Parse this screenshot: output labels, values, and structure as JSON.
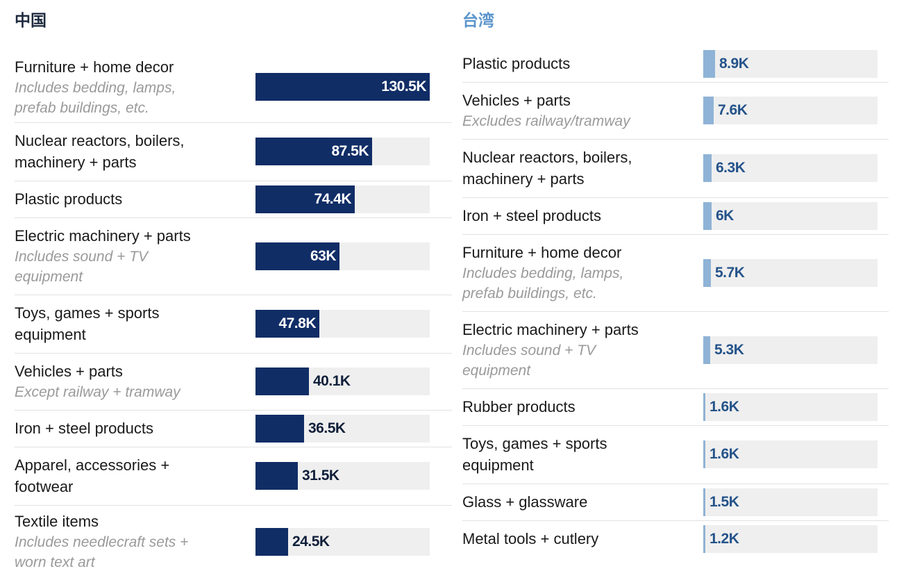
{
  "chart_data": [
    {
      "type": "bar",
      "title": "中国",
      "colors": {
        "title": "#1e2a3e",
        "bar": "#102d66",
        "track": "#efefef",
        "label_inside": "#ffffff",
        "label_outside": "#0f1f3a"
      },
      "xlim": [
        0,
        130.5
      ],
      "bars": [
        {
          "label": "Furniture + home decor",
          "note": "Includes bedding, lamps, prefab buildings, etc.",
          "value": 130.5,
          "value_label": "130.5K"
        },
        {
          "label": "Nuclear reactors, boilers, machinery + parts",
          "note": "",
          "value": 87.5,
          "value_label": "87.5K"
        },
        {
          "label": "Plastic products",
          "note": "",
          "value": 74.4,
          "value_label": "74.4K"
        },
        {
          "label": "Electric machinery + parts",
          "note": "Includes sound + TV equipment",
          "value": 63,
          "value_label": "63K"
        },
        {
          "label": "Toys, games + sports equipment",
          "note": "",
          "value": 47.8,
          "value_label": "47.8K"
        },
        {
          "label": "Vehicles + parts",
          "note": "Except railway + tramway",
          "value": 40.1,
          "value_label": "40.1K"
        },
        {
          "label": "Iron + steel products",
          "note": "",
          "value": 36.5,
          "value_label": "36.5K"
        },
        {
          "label": "Apparel, accessories + footwear",
          "note": "",
          "value": 31.5,
          "value_label": "31.5K"
        },
        {
          "label": "Textile items",
          "note": "Includes needlecraft sets + worn text art",
          "value": 24.5,
          "value_label": "24.5K"
        }
      ]
    },
    {
      "type": "bar",
      "title": "台湾",
      "colors": {
        "title": "#5b95cc",
        "bar": "#8fb3d6",
        "track": "#efefef",
        "label_inside": "#24538a",
        "label_outside": "#24538a"
      },
      "xlim": [
        0,
        130.5
      ],
      "bars": [
        {
          "label": "Plastic products",
          "note": "",
          "value": 8.9,
          "value_label": "8.9K"
        },
        {
          "label": "Vehicles + parts",
          "note": "Excludes railway/tramway",
          "value": 7.6,
          "value_label": "7.6K"
        },
        {
          "label": "Nuclear reactors, boilers, machinery + parts",
          "note": "",
          "value": 6.3,
          "value_label": "6.3K"
        },
        {
          "label": "Iron + steel products",
          "note": "",
          "value": 6,
          "value_label": "6K"
        },
        {
          "label": "Furniture + home decor",
          "note": "Includes bedding, lamps, prefab buildings, etc.",
          "value": 5.7,
          "value_label": "5.7K"
        },
        {
          "label": "Electric machinery + parts",
          "note": "Includes sound + TV equipment",
          "value": 5.3,
          "value_label": "5.3K"
        },
        {
          "label": "Rubber products",
          "note": "",
          "value": 1.6,
          "value_label": "1.6K"
        },
        {
          "label": "Toys, games + sports equipment",
          "note": "",
          "value": 1.6,
          "value_label": "1.6K"
        },
        {
          "label": "Glass + glassware",
          "note": "",
          "value": 1.5,
          "value_label": "1.5K"
        },
        {
          "label": "Metal tools + cutlery",
          "note": "",
          "value": 1.2,
          "value_label": "1.2K"
        }
      ]
    }
  ]
}
